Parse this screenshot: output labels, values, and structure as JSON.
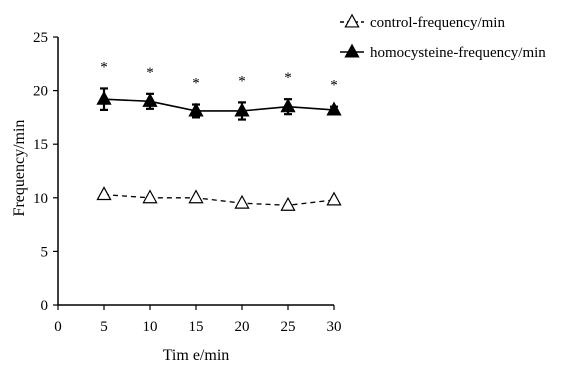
{
  "chart_data": {
    "type": "line",
    "title": "",
    "xlabel": "Tim e/min",
    "ylabel": "Frequency/min",
    "xlim": [
      0,
      30
    ],
    "ylim": [
      0,
      25
    ],
    "x_ticks": [
      0,
      5,
      10,
      15,
      20,
      25,
      30
    ],
    "y_ticks": [
      0,
      5,
      10,
      15,
      20,
      25
    ],
    "x": [
      5,
      10,
      15,
      20,
      25,
      30
    ],
    "grid": false,
    "legend_position": "top-right",
    "series": [
      {
        "name": "control-frequency/min",
        "values": [
          10.3,
          10.0,
          10.0,
          9.5,
          9.3,
          9.8
        ],
        "marker": "open-triangle",
        "line_style": "dashed",
        "color": "#000000"
      },
      {
        "name": "homocysteine-frequency/min",
        "values": [
          19.2,
          19.0,
          18.1,
          18.1,
          18.5,
          18.2
        ],
        "errors": [
          1.0,
          0.7,
          0.6,
          0.8,
          0.7,
          0.3
        ],
        "marker": "filled-triangle",
        "line_style": "solid",
        "color": "#000000"
      }
    ],
    "annotations": {
      "text": "*",
      "x": [
        5,
        10,
        15,
        20,
        25,
        30
      ]
    }
  }
}
